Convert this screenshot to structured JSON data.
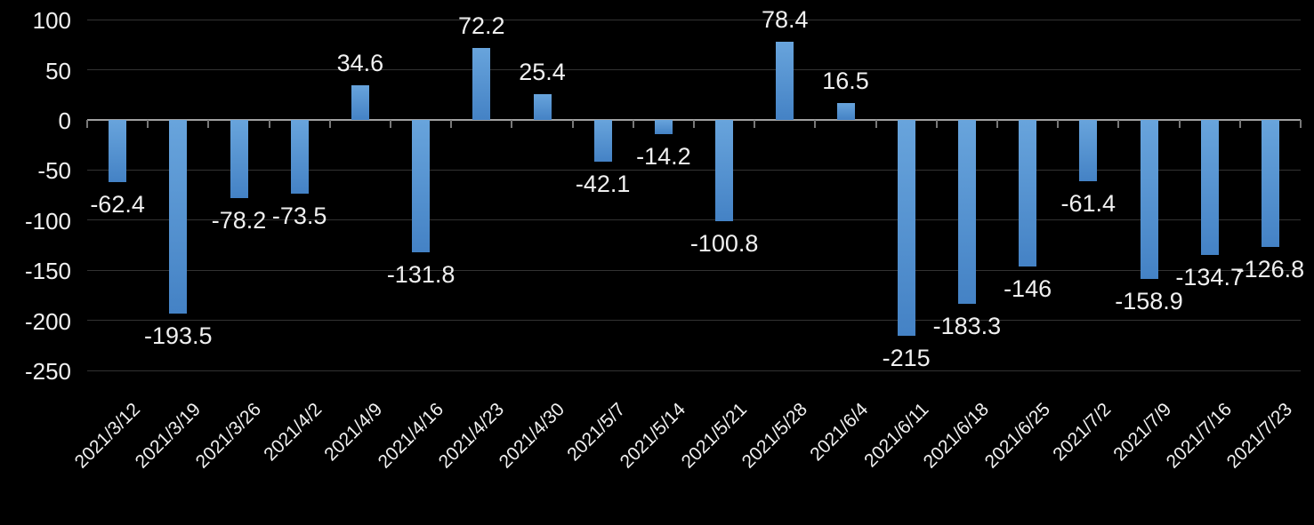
{
  "chart_data": {
    "type": "bar",
    "title": "",
    "xlabel": "",
    "ylabel": "",
    "categories": [
      "2021/3/12",
      "2021/3/19",
      "2021/3/26",
      "2021/4/2",
      "2021/4/9",
      "2021/4/16",
      "2021/4/23",
      "2021/4/30",
      "2021/5/7",
      "2021/5/14",
      "2021/5/21",
      "2021/5/28",
      "2021/6/4",
      "2021/6/11",
      "2021/6/18",
      "2021/6/25",
      "2021/7/2",
      "2021/7/9",
      "2021/7/16",
      "2021/7/23"
    ],
    "values": [
      -62.4,
      -193.5,
      -78.2,
      -73.5,
      34.6,
      -131.8,
      72.2,
      25.4,
      -42.1,
      -14.2,
      -100.8,
      78.4,
      16.5,
      -215,
      -183.3,
      -146,
      -61.4,
      -158.9,
      -134.7,
      -126.8
    ],
    "data_labels": [
      "-62.4",
      "-193.5",
      "-78.2",
      "-73.5",
      "34.6",
      "-131.8",
      "72.2",
      "25.4",
      "-42.1",
      "-14.2",
      "-100.8",
      "78.4",
      "16.5",
      "-215",
      "-183.3",
      "-146",
      "-61.4",
      "-158.9",
      "-134.7",
      "-126.8"
    ],
    "y_ticks": [
      100,
      50,
      0,
      -50,
      -100,
      -150,
      -200,
      -250
    ],
    "ylim": [
      -250,
      100
    ],
    "grid": true,
    "legend": false,
    "data_label_position": "outside-end",
    "x_label_rotation_deg": 45,
    "colors": {
      "background": "#000000",
      "bar_gradient_top": "#68a4dc",
      "bar_gradient_bottom": "#4482c5",
      "gridline": "#323232",
      "axis_line": "#a0a0a0",
      "tick": "#787878",
      "text": "#f0f0f0"
    }
  }
}
